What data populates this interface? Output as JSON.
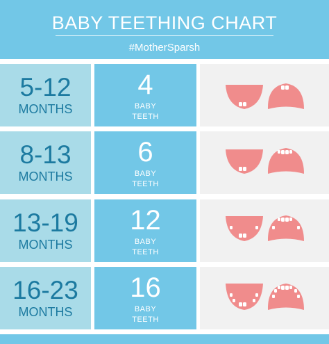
{
  "header": {
    "title": "BABY TEETHING CHART",
    "subtitle": "#MotherSparsh"
  },
  "rows": [
    {
      "age_range": "5-12",
      "age_unit": "MONTHS",
      "teeth_count": "4",
      "teeth_label_1": "BABY",
      "teeth_label_2": "TEETH"
    },
    {
      "age_range": "8-13",
      "age_unit": "MONTHS",
      "teeth_count": "6",
      "teeth_label_1": "BABY",
      "teeth_label_2": "TEETH"
    },
    {
      "age_range": "13-19",
      "age_unit": "MONTHS",
      "teeth_count": "12",
      "teeth_label_1": "BABY",
      "teeth_label_2": "TEETH"
    },
    {
      "age_range": "16-23",
      "age_unit": "MONTHS",
      "teeth_count": "16",
      "teeth_label_1": "BABY",
      "teeth_label_2": "TEETH"
    }
  ],
  "colors": {
    "header_bg": "#72c7e7",
    "age_bg": "#a9dbe8",
    "age_text": "#1c7aa0",
    "count_bg": "#72c7e7",
    "mouth_bg": "#f1f1f1",
    "gum": "#f08c8c",
    "tooth": "#ffffff"
  },
  "icons": [
    "lower-jaw-icon",
    "upper-jaw-icon"
  ]
}
